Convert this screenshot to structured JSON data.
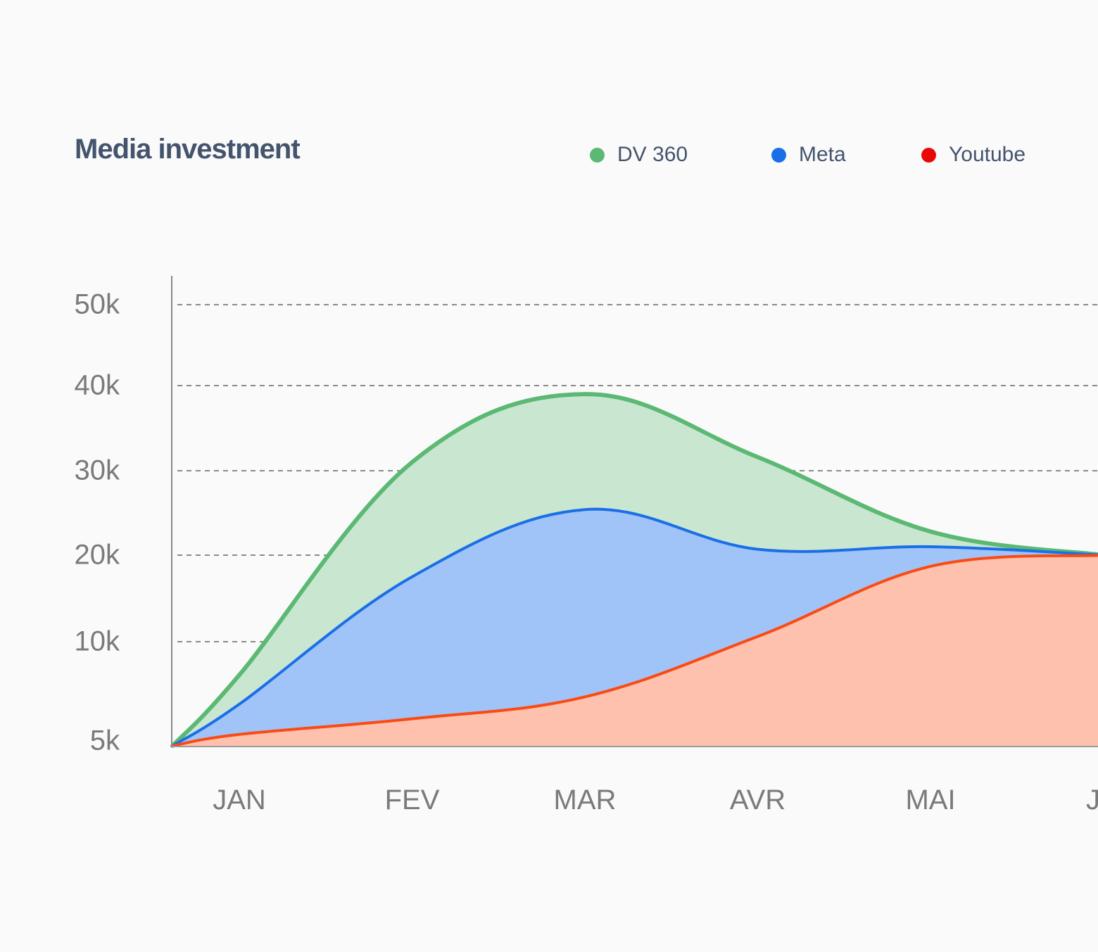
{
  "chart_data": {
    "type": "area",
    "title": "Media investment",
    "xlabel": "",
    "ylabel": "",
    "categories": [
      "JAN",
      "FEV",
      "MAR",
      "AVR",
      "MAI",
      "J"
    ],
    "y_ticks": [
      {
        "label": "50k",
        "value": 50000
      },
      {
        "label": "40k",
        "value": 40000
      },
      {
        "label": "30k",
        "value": 30000
      },
      {
        "label": "20k",
        "value": 20000
      },
      {
        "label": "10k",
        "value": 10000
      },
      {
        "label": "5k",
        "value": 5000
      }
    ],
    "ylim": [
      0,
      50000
    ],
    "grid": "horizontal-dashed",
    "legend_position": "top-right",
    "series": [
      {
        "name": "DV 360",
        "color": "#5bb974",
        "fill": "#c8e6d0",
        "start": 0,
        "values": [
          6800,
          31000,
          39000,
          31600,
          22800,
          20000
        ]
      },
      {
        "name": "Meta",
        "color": "#1a6fe8",
        "fill": "#a0c3f8",
        "start": 0,
        "values": [
          4000,
          17500,
          25400,
          20700,
          21000,
          20000
        ]
      },
      {
        "name": "Youtube",
        "color": "#fb4a14",
        "fill": "#fdc1ae",
        "start": 0,
        "values": [
          1100,
          2600,
          4700,
          10600,
          18700,
          20000
        ]
      }
    ]
  },
  "legend": [
    {
      "label": "DV 360",
      "color": "#5bb974"
    },
    {
      "label": "Meta",
      "color": "#1a6fe8"
    },
    {
      "label": "Youtube",
      "color": "#e80808"
    }
  ]
}
